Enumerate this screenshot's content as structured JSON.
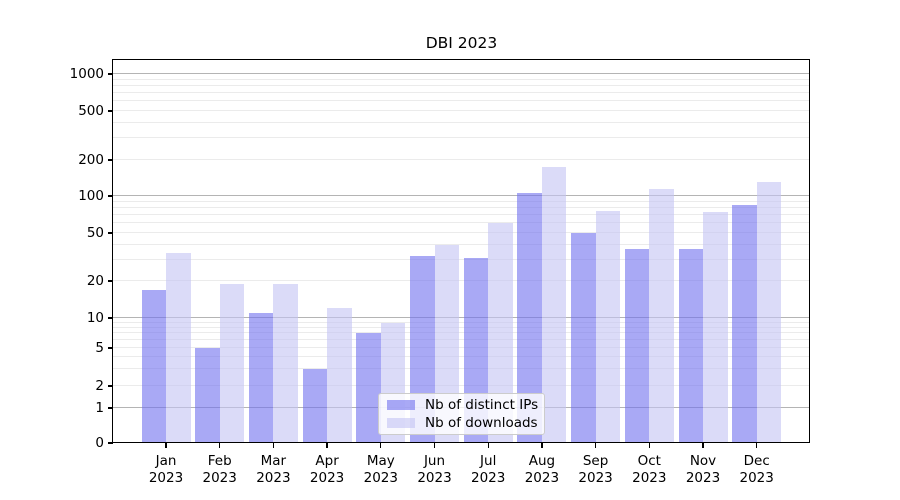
{
  "chart_data": {
    "type": "bar",
    "title": "DBI 2023",
    "categories": [
      "Jan 2023",
      "Feb 2023",
      "Mar 2023",
      "Apr 2023",
      "May 2023",
      "Jun 2023",
      "Jul 2023",
      "Aug 2023",
      "Sep 2023",
      "Oct 2023",
      "Nov 2023",
      "Dec 2023"
    ],
    "series": [
      {
        "name": "Nb of distinct IPs",
        "color": "#a9a9f5",
        "fill": "rgba(112,112,238,0.6)",
        "values": [
          17,
          5,
          11,
          3,
          7,
          32,
          31,
          107,
          50,
          37,
          37,
          85
        ]
      },
      {
        "name": "Nb of downloads",
        "color": "#dbdbf8",
        "fill": "rgba(195,195,243,0.6)",
        "values": [
          34,
          19,
          19,
          12,
          9,
          40,
          60,
          175,
          76,
          114,
          74,
          130
        ]
      }
    ],
    "xlabel": "",
    "ylabel": "",
    "yscale": "symlog",
    "ylim": [
      0,
      1300
    ],
    "y_ticks": [
      0,
      1,
      2,
      5,
      10,
      20,
      50,
      100,
      200,
      500,
      1000
    ],
    "grid": true,
    "legend": {
      "position": "lower-center",
      "entries": [
        "Nb of distinct IPs",
        "Nb of downloads"
      ]
    },
    "colors": {
      "grid_major": "#b4b4b4",
      "grid_minor": "#ebebeb",
      "axis": "#000000",
      "background": "#ffffff"
    }
  }
}
